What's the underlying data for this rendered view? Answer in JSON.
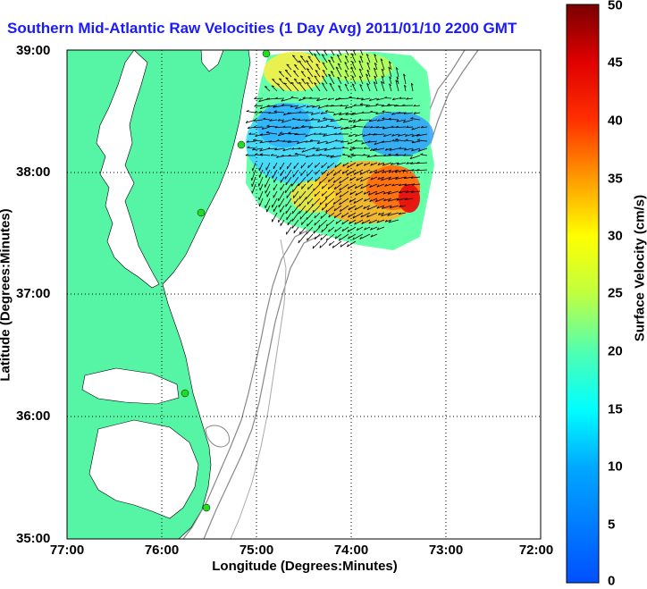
{
  "title": "Southern Mid-Atlantic Raw Velocities (1 Day Avg) 2011/01/10 2200 GMT",
  "axes": {
    "xlabel": "Longitude (Degrees:Minutes)",
    "ylabel": "Latitude (Degrees:Minutes)",
    "xticks": [
      "77:00",
      "76:00",
      "75:00",
      "74:00",
      "73:00",
      "72:00"
    ],
    "yticks": [
      "39:00",
      "38:00",
      "37:00",
      "36:00",
      "35:00"
    ]
  },
  "colorbar": {
    "label": "Surface Velocity (cm/s)",
    "ticks": [
      "50",
      "45",
      "40",
      "35",
      "30",
      "25",
      "20",
      "15",
      "10",
      "5",
      "0"
    ],
    "range": [
      0,
      50
    ],
    "colormap": "jet"
  },
  "colors": {
    "land": "#55f5a5",
    "title": "#1a1aff",
    "bathymetry": "#888888",
    "station": "#22dd22"
  },
  "stations_count": 5
}
